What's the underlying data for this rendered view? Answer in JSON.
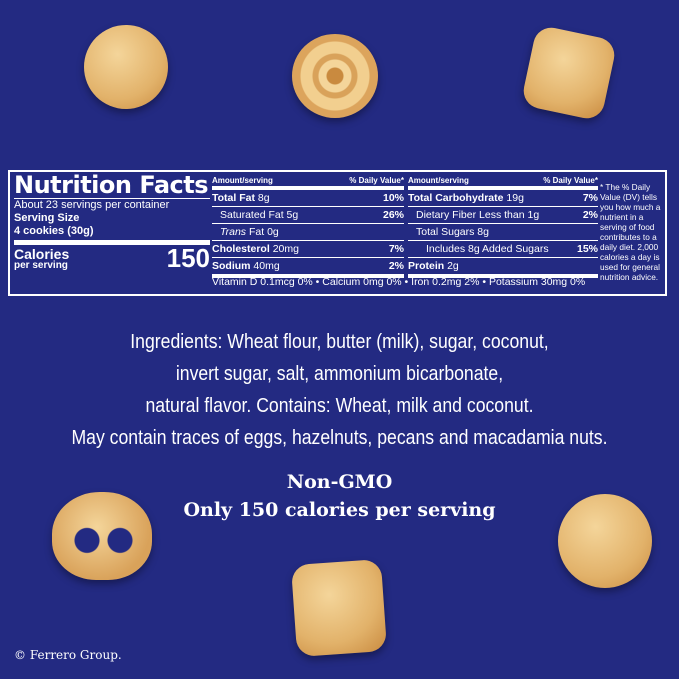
{
  "nutrition": {
    "title": "Nutrition Facts",
    "servings": "About 23 servings per container",
    "serving_size_label": "Serving Size",
    "serving_size": "4 cookies (30g)",
    "calories_label": "Calories",
    "calories_sub": "per serving",
    "calories": "150",
    "header_amount": "Amount/serving",
    "header_dv": "% Daily Value*",
    "left": [
      {
        "name": "Total Fat",
        "amount": "8g",
        "dv": "10%"
      },
      {
        "name": "Saturated Fat",
        "amount": "5g",
        "dv": "26%"
      },
      {
        "name": "Trans",
        "amount": "Fat 0g",
        "dv": ""
      },
      {
        "name": "Cholesterol",
        "amount": "20mg",
        "dv": "7%"
      },
      {
        "name": "Sodium",
        "amount": "40mg",
        "dv": "2%"
      }
    ],
    "right": [
      {
        "name": "Total Carbohydrate",
        "amount": "19g",
        "dv": "7%"
      },
      {
        "name": "Dietary Fiber Less than",
        "amount": "1g",
        "dv": "2%"
      },
      {
        "name": "Total Sugars",
        "amount": "8g",
        "dv": ""
      },
      {
        "name": "Includes 8g Added Sugars",
        "amount": "",
        "dv": "15%"
      },
      {
        "name": "Protein",
        "amount": "2g",
        "dv": ""
      }
    ],
    "vitamins": "Vitamin D 0.1mcg 0% • Calcium 0mg 0% • Iron 0.2mg 2% • Potassium 30mg 0%",
    "footnote": "* The % Daily Value (DV) tells you how much a nutrient in a serving of food contributes to a daily diet. 2,000 calories a day is used for general nutrition advice."
  },
  "ingredients": [
    "Ingredients: Wheat flour, butter (milk), sugar, coconut,",
    "invert sugar, salt, ammonium bicarbonate,",
    "natural flavor. Contains: Wheat, milk and coconut.",
    "May contain traces of eggs, hazelnuts, pecans and macadamia nuts."
  ],
  "claims": [
    "Non-GMO",
    "Only 150 calories per serving"
  ],
  "copyright": "© Ferrero Group.",
  "colors": {
    "background": "#232a82",
    "text": "#ffffff",
    "cookie": "#e2b26a"
  }
}
